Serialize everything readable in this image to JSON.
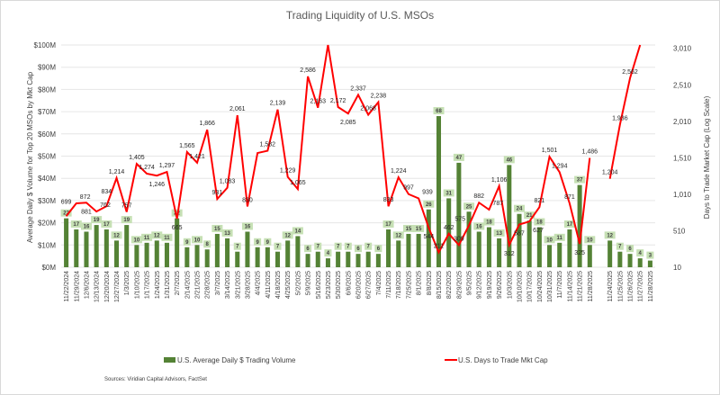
{
  "chart_data": {
    "type": "bar+line",
    "title": "Trading Liquidity of U.S. MSOs",
    "ylabel": "Average Daily $ Volume for Top 20 MSOs by Mkt Cap",
    "y2label": "Days to Trade Market Cap (Log Scale)",
    "ylim": [
      0,
      100
    ],
    "y_ticks": [
      "$0M",
      "$10M",
      "$20M",
      "$30M",
      "$40M",
      "$50M",
      "$60M",
      "$70M",
      "$80M",
      "$90M",
      "$100M"
    ],
    "y2_ticks": [
      "10",
      "510",
      "1,010",
      "1,510",
      "2,010",
      "2,510",
      "3,010"
    ],
    "y2lim": [
      10,
      3010
    ],
    "grid": true,
    "legend_position": "bottom",
    "source": "Sources: Viridian Capital Advisors, FactSet",
    "categories": [
      "11/22/2024",
      "11/29/2024",
      "12/6/2024",
      "12/13/2024",
      "12/20/2024",
      "12/27/2024",
      "1/3/2025",
      "1/10/2025",
      "1/17/2025",
      "1/24/2025",
      "1/31/2025",
      "2/7/2025",
      "2/14/2025",
      "2/21/2025",
      "2/28/2025",
      "3/7/2025",
      "3/14/2025",
      "3/21/2025",
      "3/28/2025",
      "4/4/2025",
      "4/11/2025",
      "4/18/2025",
      "4/25/2025",
      "5/2/2025",
      "5/9/2025",
      "5/16/2025",
      "5/23/2025",
      "5/30/2025",
      "6/6/2025",
      "6/20/2025",
      "6/27/2025",
      "7/4/2025",
      "7/11/2025",
      "7/18/2025",
      "7/25/2025",
      "8/1/2025",
      "8/8/2025",
      "8/15/2025",
      "8/22/2025",
      "8/29/2025",
      "9/5/2025",
      "9/12/2025",
      "9/19/2025",
      "9/26/2025",
      "10/3/2025",
      "10/10/2025",
      "10/17/2025",
      "10/24/2025",
      "10/31/2025",
      "11/7/2025",
      "11/14/2025",
      "11/21/2025",
      "11/28/2025",
      "",
      "11/24/2025",
      "11/25/2025",
      "11/26/2025",
      "11/27/2025",
      "11/28/2025"
    ],
    "series": [
      {
        "name": "U.S. Average Daily $ Trading Volume",
        "type": "bar",
        "color": "#548235",
        "values": [
          22,
          17,
          16,
          19,
          17,
          12,
          19,
          10,
          11,
          12,
          11,
          22,
          9,
          10,
          8,
          15,
          13,
          7,
          16,
          9,
          9,
          7,
          12,
          14,
          6,
          7,
          4,
          7,
          7,
          6,
          7,
          6,
          17,
          12,
          15,
          15,
          26,
          68,
          31,
          47,
          25,
          16,
          18,
          13,
          46,
          24,
          21,
          18,
          10,
          11,
          17,
          37,
          10,
          null,
          12,
          7,
          6,
          4,
          3
        ]
      },
      {
        "name": "U.S. Days to Trade Mkt Cap",
        "type": "line",
        "color": "#ff0000",
        "values": [
          699,
          872,
          881,
          762,
          834,
          1214,
          757,
          1405,
          1274,
          1246,
          1297,
          665,
          1565,
          1421,
          1866,
          931,
          1083,
          2061,
          830,
          1552,
          1582,
          2139,
          1229,
          1065,
          2586,
          2163,
          3100,
          2172,
          2085,
          2337,
          2068,
          2238,
          833,
          1224,
          997,
          939,
          544,
          211,
          462,
          309,
          575,
          882,
          787,
          1106,
          312,
          587,
          627,
          821,
          1501,
          1294,
          871,
          325,
          1486,
          null,
          1204,
          1936,
          2562,
          3200,
          null
        ],
        "labels": [
          "699",
          "872",
          "881",
          "762",
          "834",
          "1,214",
          "757",
          "1,405",
          "1,274",
          "1,246",
          "1,297",
          "665",
          "1,565",
          "1,421",
          "1,866",
          "931",
          "1,083",
          "2,061",
          "830",
          "",
          "1,582",
          "2,139",
          "1,229",
          "1,065",
          "2,586",
          "2,163",
          "",
          "2,172",
          "2,085",
          "2,337",
          "2,068",
          "2,238",
          "833",
          "1,224",
          "997",
          "939",
          "544",
          "211",
          "462",
          "309",
          "575",
          "882",
          "787",
          "1,106",
          "312",
          "587",
          "627",
          "821",
          "1,501",
          "1,294",
          "871",
          "325",
          "1,486",
          "",
          "1,204",
          "1,936",
          "2,562",
          "",
          ""
        ]
      }
    ]
  }
}
